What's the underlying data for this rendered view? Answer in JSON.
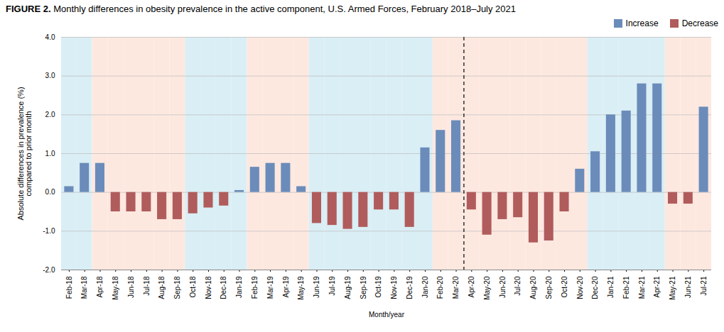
{
  "chart_data": {
    "type": "bar",
    "title": "FIGURE 2.",
    "subtitle": "Monthly differences in obesity prevalence in the active component, U.S. Armed Forces, February 2018–July 2021",
    "xlabel": "Month/year",
    "ylabel": "Absolute differences in prevalence (%)\ncompared to prior month",
    "categories": [
      "Feb-18",
      "Mar-18",
      "Apr-18",
      "May-18",
      "Jun-18",
      "Jul-18",
      "Aug-18",
      "Sep-18",
      "Oct-18",
      "Nov-18",
      "Dec-18",
      "Jan-19",
      "Feb-19",
      "Mar-19",
      "Apr-19",
      "May-19",
      "Jun-19",
      "Jul-19",
      "Aug-19",
      "Sep-19",
      "Oct-19",
      "Nov-19",
      "Dec-19",
      "Jan-20",
      "Feb-20",
      "Mar-20",
      "Apr-20",
      "May-20",
      "Jun-20",
      "Jul-20",
      "Aug-20",
      "Sep-20",
      "Oct-20",
      "Nov-20",
      "Dec-20",
      "Jan-21",
      "Feb-21",
      "Mar-21",
      "Apr-21",
      "May-21",
      "Jun-21",
      "Jul-21"
    ],
    "series": [
      {
        "name": "Increase",
        "color": "#6b8cba",
        "values": [
          0.15,
          0.75,
          0.75,
          null,
          null,
          null,
          null,
          null,
          null,
          null,
          null,
          0.05,
          0.65,
          0.75,
          0.75,
          0.15,
          null,
          null,
          null,
          null,
          null,
          null,
          null,
          1.15,
          1.6,
          1.85,
          null,
          null,
          null,
          null,
          null,
          null,
          null,
          0.6,
          1.05,
          2.0,
          2.1,
          2.8,
          2.8,
          null,
          null,
          2.2
        ]
      },
      {
        "name": "Decrease",
        "color": "#b05c5c",
        "values": [
          null,
          null,
          null,
          -0.5,
          -0.5,
          -0.5,
          -0.7,
          -0.7,
          -0.55,
          -0.4,
          -0.35,
          null,
          null,
          null,
          null,
          null,
          -0.8,
          -0.85,
          -0.95,
          -0.9,
          -0.45,
          -0.45,
          -0.9,
          null,
          null,
          null,
          -0.45,
          -1.1,
          -0.7,
          -0.65,
          -1.3,
          -1.25,
          -0.5,
          null,
          null,
          null,
          null,
          null,
          null,
          -0.3,
          -0.3,
          null
        ]
      }
    ],
    "bands": [
      {
        "from": "Feb-18",
        "to": "Mar-18",
        "color": "#daeef5"
      },
      {
        "from": "Apr-18",
        "to": "Sep-18",
        "color": "#fde8e0"
      },
      {
        "from": "Oct-18",
        "to": "Jan-19",
        "color": "#daeef5"
      },
      {
        "from": "Feb-19",
        "to": "May-19",
        "color": "#fde8e0"
      },
      {
        "from": "Jun-19",
        "to": "Jan-20",
        "color": "#daeef5"
      },
      {
        "from": "Feb-20",
        "to": "Mar-20",
        "color": "#fde8e0"
      },
      {
        "from": "Apr-20",
        "to": "Nov-20",
        "color": "#fde8e0"
      },
      {
        "from": "Dec-20",
        "to": "Apr-21",
        "color": "#daeef5"
      },
      {
        "from": "May-21",
        "to": "Jul-21",
        "color": "#fde8e0"
      }
    ],
    "divider_after": "Mar-20",
    "ylim": [
      -2.0,
      4.0
    ],
    "yticks": [
      {
        "value": -2,
        "label": "-2.0"
      },
      {
        "value": -1,
        "label": "-1.0"
      },
      {
        "value": 0,
        "label": "0.0"
      },
      {
        "value": 1,
        "label": "1.0"
      },
      {
        "value": 2,
        "label": "2.0"
      },
      {
        "value": 3,
        "label": "3.0"
      },
      {
        "value": 4,
        "label": "4.0"
      }
    ],
    "grid": true,
    "legend": "upper right"
  }
}
